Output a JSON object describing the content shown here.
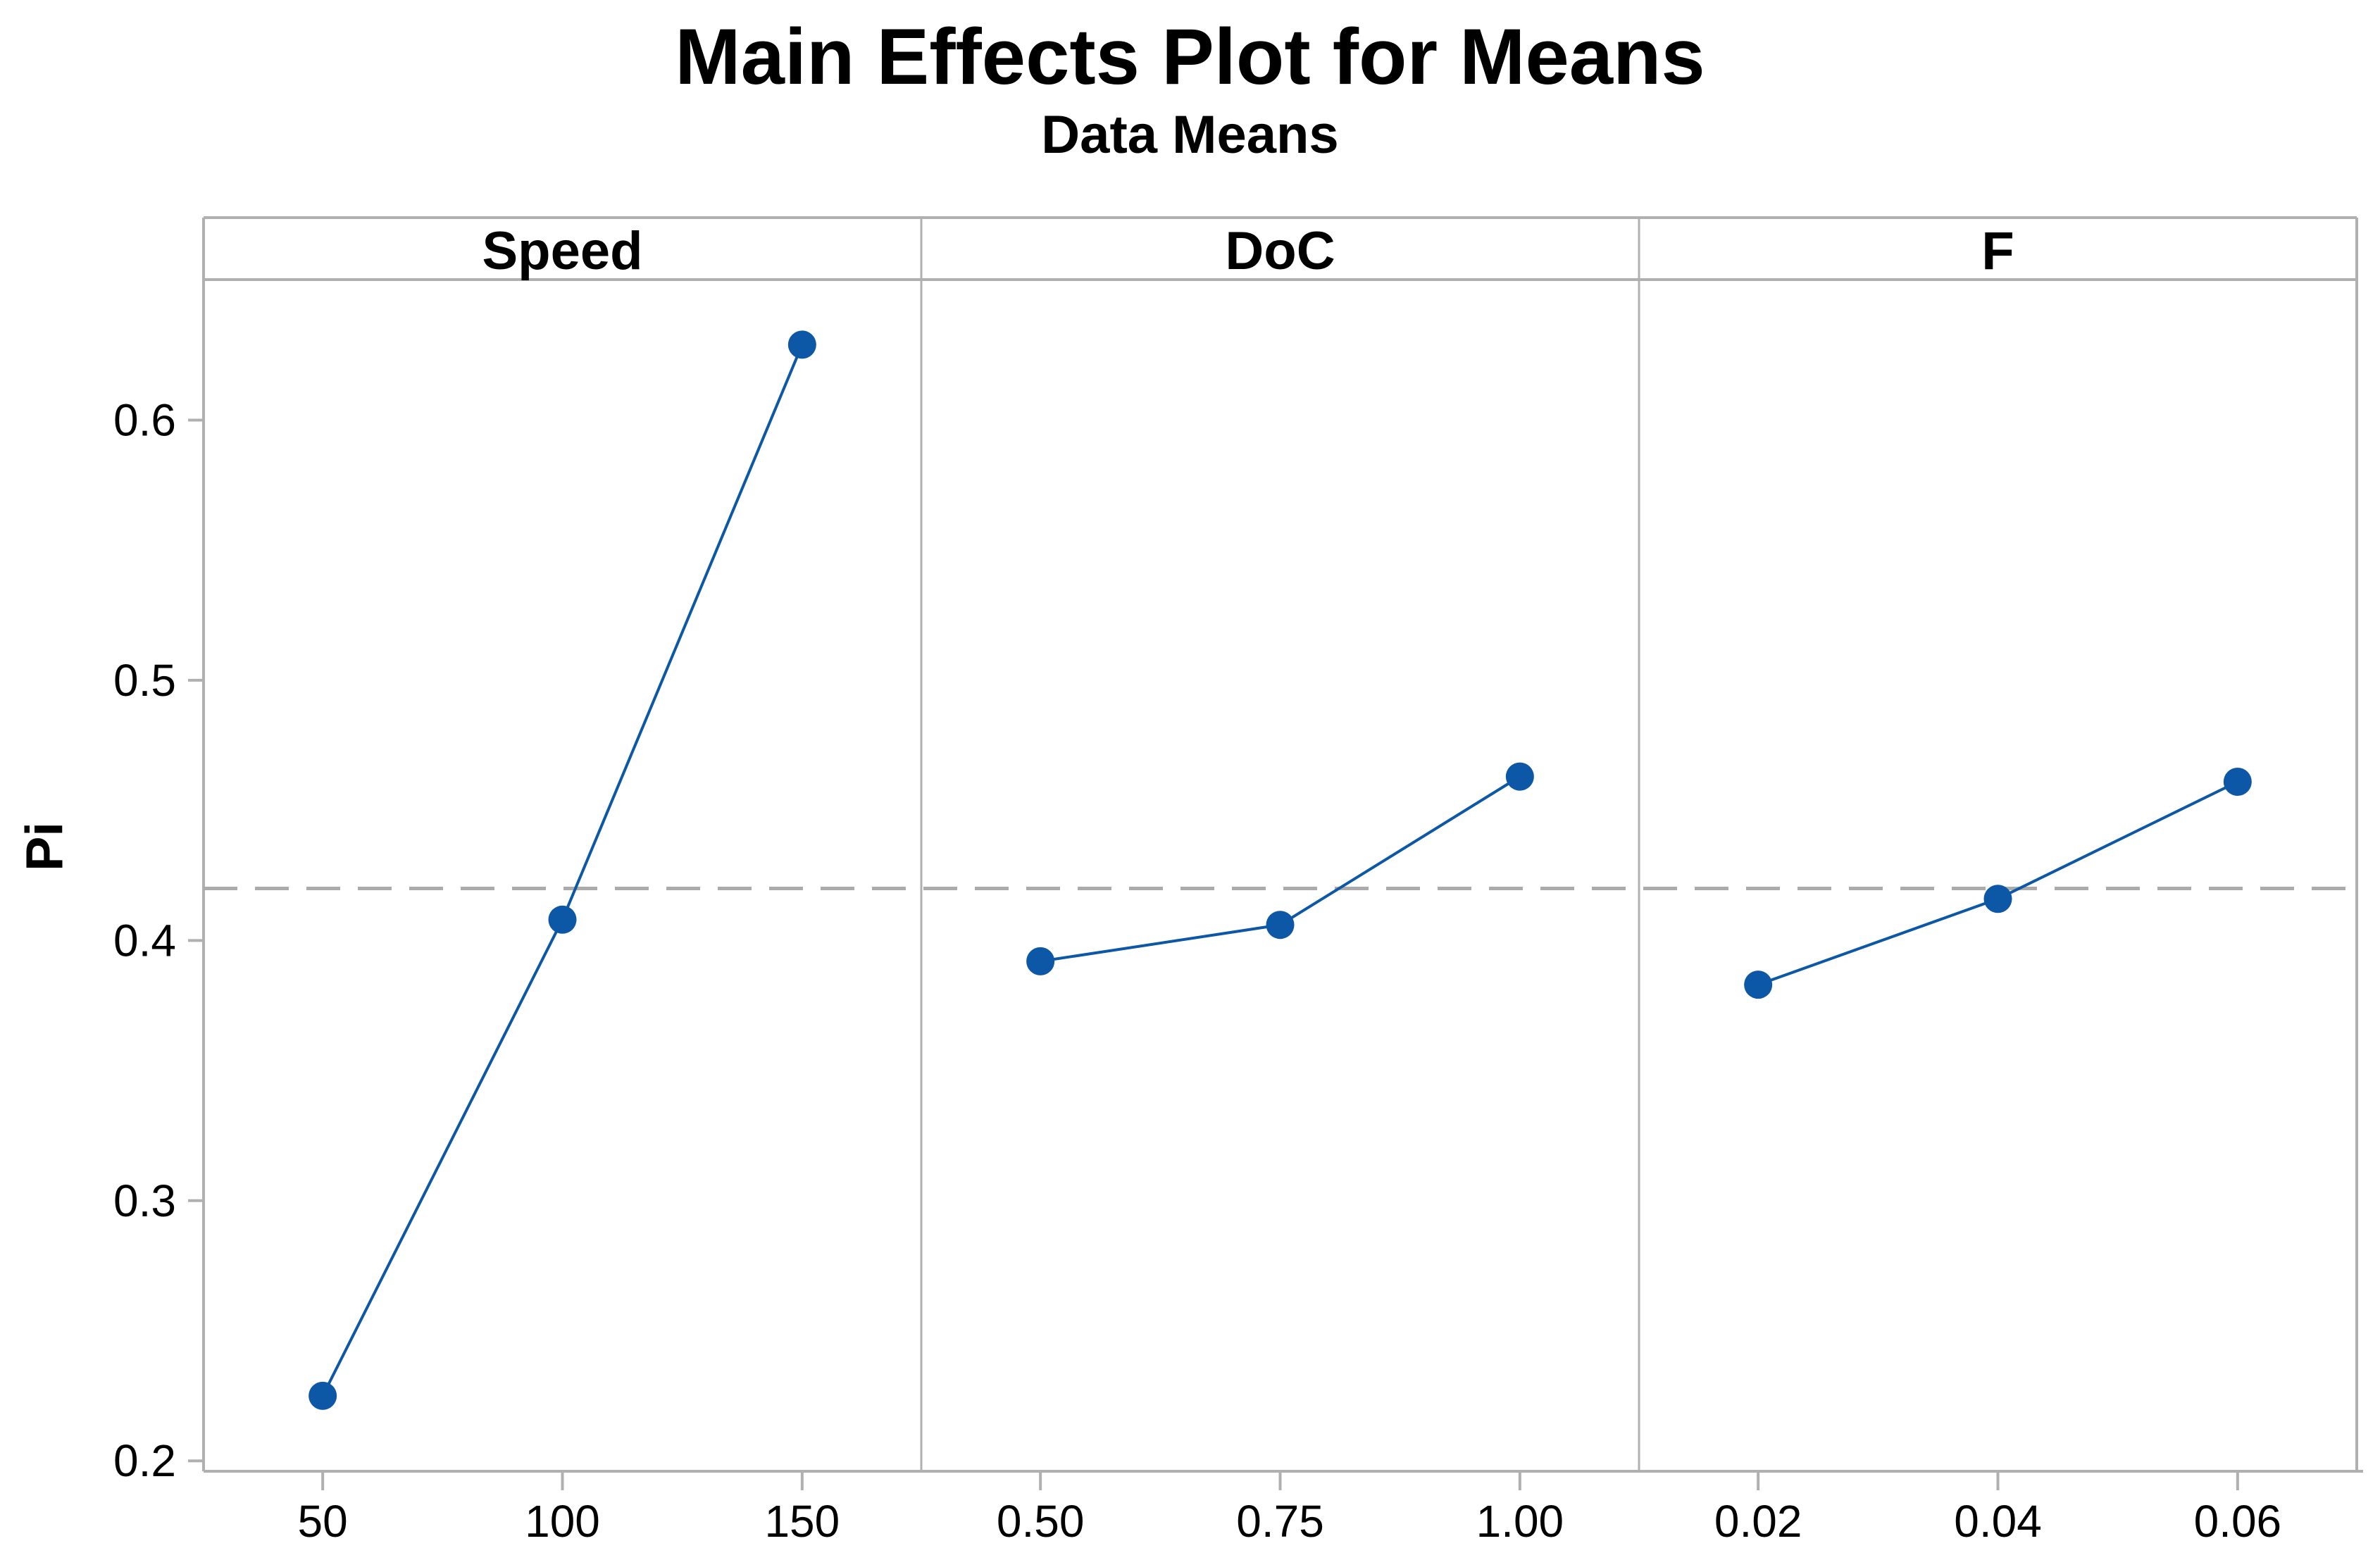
{
  "chart_data": {
    "type": "line",
    "title": "Main Effects Plot for Means",
    "subtitle": "Data Means",
    "ylabel": "Pi",
    "panels": [
      {
        "label": "Speed",
        "x_ticklabels": [
          "50",
          "100",
          "150"
        ],
        "values": [
          0.225,
          0.408,
          0.629
        ]
      },
      {
        "label": "DoC",
        "x_ticklabels": [
          "0.50",
          "0.75",
          "1.00"
        ],
        "values": [
          0.392,
          0.406,
          0.463
        ]
      },
      {
        "label": "F",
        "x_ticklabels": [
          "0.02",
          "0.04",
          "0.06"
        ],
        "values": [
          0.383,
          0.416,
          0.461
        ]
      }
    ],
    "grand_mean": 0.42,
    "yticks": [
      0.2,
      0.3,
      0.4,
      0.5,
      0.6
    ],
    "ylim": [
      0.196,
      0.654
    ],
    "grid": false,
    "legend": "none",
    "mean_line_style": "dashed",
    "colors": {
      "series": "#0D57A7",
      "mean_line": "#ABABAB",
      "axis": "#B0B0B0",
      "text": "#000000"
    }
  }
}
